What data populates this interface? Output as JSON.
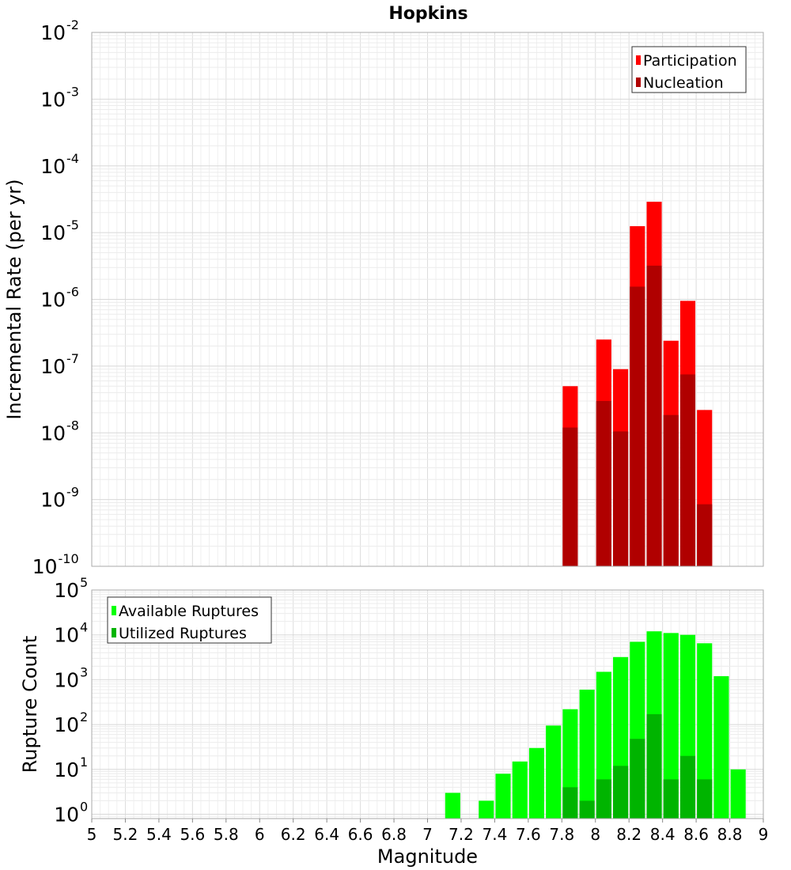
{
  "chart_data": [
    {
      "type": "bar",
      "title": "Hopkins",
      "xlabel": "",
      "ylabel": "Incremental Rate (per yr)",
      "yscale": "log",
      "ylim_exponents": [
        -10,
        -2
      ],
      "ytick_exponents": [
        "-2",
        "-3",
        "-4",
        "-5",
        "-6",
        "-7",
        "-8",
        "-9",
        "-10"
      ],
      "bar_width": 0.09,
      "grid": true,
      "legend_position": "top-right",
      "series": [
        {
          "name": "Participation",
          "color": "#ff0000",
          "x": [
            7.85,
            8.05,
            8.15,
            8.25,
            8.35,
            8.45,
            8.55,
            8.65
          ],
          "values": [
            5e-08,
            2.5e-07,
            9e-08,
            1.25e-05,
            2.9e-05,
            2.4e-07,
            9.5e-07,
            2.2e-08
          ]
        },
        {
          "name": "Nucleation",
          "color": "#b00000",
          "x": [
            7.85,
            8.05,
            8.15,
            8.25,
            8.35,
            8.45,
            8.55,
            8.65
          ],
          "values": [
            1.2e-08,
            3e-08,
            1.05e-08,
            1.55e-06,
            3.2e-06,
            1.85e-08,
            7.5e-08,
            8.5e-10
          ]
        }
      ]
    },
    {
      "type": "bar",
      "title": "",
      "xlabel": "Magnitude",
      "ylabel": "Rupture Count",
      "yscale": "log",
      "ylim_exponents": [
        0,
        5
      ],
      "ytick_exponents": [
        "5",
        "4",
        "3",
        "2",
        "1",
        "0"
      ],
      "y_axis_min_value": 0.8,
      "xlim": [
        5,
        9
      ],
      "xtick_labels": [
        "5",
        "5.2",
        "5.4",
        "5.6",
        "5.8",
        "6",
        "6.2",
        "6.4",
        "6.6",
        "6.8",
        "7",
        "7.2",
        "7.4",
        "7.6",
        "7.8",
        "8",
        "8.2",
        "8.4",
        "8.6",
        "8.8",
        "9"
      ],
      "bar_width": 0.09,
      "grid": true,
      "legend_position": "top-left",
      "series": [
        {
          "name": "Available Ruptures",
          "color": "#00ff00",
          "x": [
            7.15,
            7.35,
            7.45,
            7.55,
            7.65,
            7.75,
            7.85,
            7.95,
            8.05,
            8.15,
            8.25,
            8.35,
            8.45,
            8.55,
            8.65,
            8.75,
            8.85
          ],
          "values": [
            3,
            2,
            8,
            15,
            30,
            95,
            220,
            600,
            1500,
            3200,
            7000,
            12000,
            11000,
            10000,
            6500,
            1200,
            10
          ]
        },
        {
          "name": "Utilized Ruptures",
          "color": "#00b400",
          "x": [
            7.85,
            7.95,
            8.05,
            8.15,
            8.25,
            8.35,
            8.45,
            8.55,
            8.65
          ],
          "values": [
            4,
            2,
            6,
            12,
            48,
            170,
            6,
            20,
            6
          ]
        }
      ]
    }
  ]
}
